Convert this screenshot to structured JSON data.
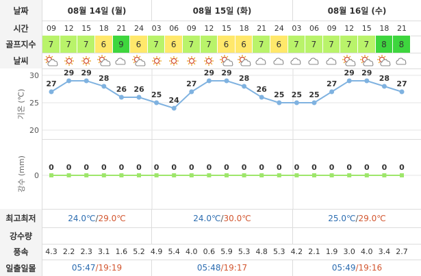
{
  "labels": {
    "date": "날짜",
    "time": "시간",
    "golf": "골프지수",
    "weather": "날씨",
    "temp_axis": "기온 (℃)",
    "rain_axis": "강수 (mm)",
    "minmax": "최고최저",
    "rainfall": "강수량",
    "wind": "풍속",
    "sun": "일출일몰"
  },
  "days": [
    {
      "date": "08월 14일 (월)",
      "min": "24.0℃",
      "max": "29.0℃",
      "sunrise": "05:47",
      "sunset": "19:19"
    },
    {
      "date": "08월 15일 (화)",
      "min": "24.0℃",
      "max": "30.0℃",
      "sunrise": "05:48",
      "sunset": "19:17"
    },
    {
      "date": "08월 16일 (수)",
      "min": "25.0℃",
      "max": "29.0℃",
      "sunrise": "05:49",
      "sunset": "19:16"
    }
  ],
  "sun_sep": "/",
  "minmax_sep": "/",
  "hours": [
    "09",
    "12",
    "15",
    "18",
    "21",
    "24",
    "03",
    "06",
    "09",
    "12",
    "15",
    "18",
    "21",
    "24",
    "03",
    "06",
    "09",
    "12",
    "15",
    "18",
    "21"
  ],
  "golf_index": [
    "7",
    "7",
    "7",
    "6",
    "9",
    "6",
    "7",
    "6",
    "7",
    "7",
    "6",
    "6",
    "7",
    "6",
    "7",
    "7",
    "7",
    "7",
    "7",
    "8",
    "8"
  ],
  "weather_icons": [
    "partly-cloudy-icon",
    "sun-icon",
    "sun-icon",
    "partly-cloudy-icon",
    "cloud-icon",
    "partly-cloudy-icon",
    "sun-icon",
    "sun-icon",
    "sun-icon",
    "sun-icon",
    "partly-cloudy-icon",
    "partly-cloudy-icon",
    "cloud-icon",
    "cloud-icon",
    "cloud-icon",
    "cloud-icon",
    "cloud-icon",
    "partly-cloudy-icon",
    "partly-cloudy-icon",
    "partly-cloudy-icon",
    "cloud-icon"
  ],
  "wind": [
    "4.3",
    "2.2",
    "2.3",
    "3.1",
    "1.6",
    "5.2",
    "4.9",
    "5.4",
    "4.0",
    "0.6",
    "5.9",
    "5.3",
    "4.8",
    "5.3",
    "4.2",
    "2.1",
    "1.9",
    "3.0",
    "4.0",
    "3.4",
    "2.7"
  ],
  "colors": {
    "golf_light": "#b9f36a",
    "golf_mid": "#ffe86b",
    "golf_strong": "#3ed63e",
    "temp_line": "#7fb2e0",
    "rain_line": "#9ee66b",
    "min_text": "#2b6cb0",
    "max_text": "#d2552e"
  },
  "chart_data": [
    {
      "type": "line",
      "x": [
        "09",
        "12",
        "15",
        "18",
        "21",
        "24",
        "03",
        "06",
        "09",
        "12",
        "15",
        "18",
        "21",
        "24",
        "03",
        "06",
        "09",
        "12",
        "15",
        "18",
        "21"
      ],
      "values": [
        27,
        29,
        29,
        28,
        26,
        26,
        25,
        24,
        27,
        29,
        29,
        28,
        26,
        25,
        25,
        25,
        27,
        29,
        29,
        28,
        27
      ],
      "ylabel": "기온 (℃)",
      "yticks": [
        20,
        25,
        30
      ],
      "ylim": [
        20,
        30
      ]
    },
    {
      "type": "line",
      "x": [
        "09",
        "12",
        "15",
        "18",
        "21",
        "24",
        "03",
        "06",
        "09",
        "12",
        "15",
        "18",
        "21",
        "24",
        "03",
        "06",
        "09",
        "12",
        "15",
        "18",
        "21"
      ],
      "values": [
        0,
        0,
        0,
        0,
        0,
        0,
        0,
        0,
        0,
        0,
        0,
        0,
        0,
        0,
        0,
        0,
        0,
        0,
        0,
        0,
        0
      ],
      "ylabel": "강수 (mm)",
      "yticks": [
        0
      ]
    }
  ]
}
